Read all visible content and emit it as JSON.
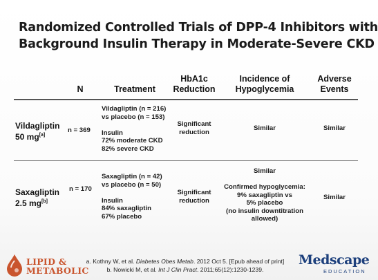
{
  "title": {
    "line1": "Randomized Controlled Trials of DPP-4 Inhibitors with",
    "line2": "Background Insulin Therapy in Moderate-Severe CKD"
  },
  "headers": {
    "n": "N",
    "treatment": "Treatment",
    "hba1c_1": "HbA1c",
    "hba1c_2": "Reduction",
    "hypo_1": "Incidence of",
    "hypo_2": "Hypoglycemia",
    "ae_1": "Adverse",
    "ae_2": "Events"
  },
  "rows": [
    {
      "drug_1": "Vildagliptin",
      "drug_2": "50 mg",
      "ref": "[a]",
      "n": "n =  369",
      "treatment": [
        "Vildagliptin (n = 216)",
        "vs placebo (n = 153)",
        "",
        "Insulin",
        "72% moderate CKD",
        "82% severe CKD"
      ],
      "hba1c_1": "Significant",
      "hba1c_2": "reduction",
      "hypo": [
        "Similar"
      ],
      "ae": "Similar"
    },
    {
      "drug_1": "Saxagliptin",
      "drug_2": "2.5 mg",
      "ref": "[b]",
      "n": "n = 170",
      "treatment": [
        "Saxagliptin (n = 42)",
        "vs placebo (n = 50)",
        "",
        "Insulin",
        "84% saxagliptin",
        "67% placebo"
      ],
      "hba1c_1": "Significant",
      "hba1c_2": "reduction",
      "hypo": [
        "Similar",
        "",
        "Confirmed hypoglycemia:",
        "9% saxagliptin vs",
        "5% placebo",
        "(no insulin downtitration",
        "allowed)"
      ],
      "ae": "Similar"
    }
  ],
  "footer": {
    "a_pre": "a. Kothny W, et al. ",
    "a_journal": "Diabetes Obes Metab",
    "a_post": ". 2012 Oct 5. [Epub ahead of print]",
    "b_pre": "b. Nowicki M, et al. ",
    "b_journal": "Int J Clin Pract",
    "b_post": ". 2011;65(12):1230-1239."
  },
  "logos": {
    "lm_line1": "LIPID &",
    "lm_line2": "METABOLIC",
    "lm_color": "#c9542d",
    "med_word": "Medscape",
    "med_sub": "EDUCATION",
    "med_color": "#1c3f7c"
  }
}
